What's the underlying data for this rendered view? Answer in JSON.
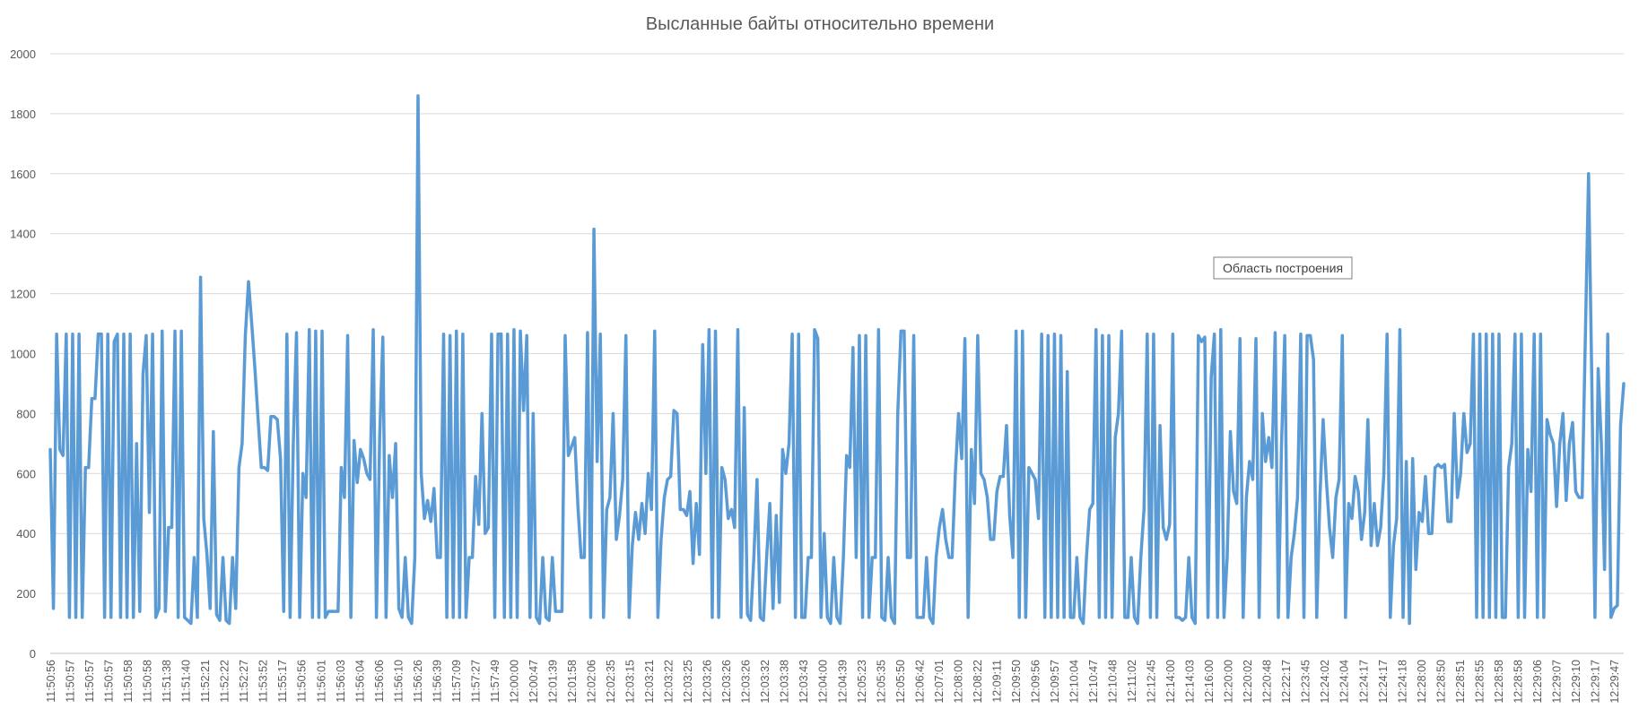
{
  "chart_data": {
    "type": "line",
    "title": "Высланные байты относительно времени",
    "xlabel": "",
    "ylabel": "",
    "ylim": [
      0,
      2000
    ],
    "yticks": [
      0,
      200,
      400,
      600,
      800,
      1000,
      1200,
      1400,
      1600,
      1800,
      2000
    ],
    "grid": true,
    "legend": "none",
    "line_color": "#5B9BD5",
    "tooltip": "Область построения",
    "xtick_labels": [
      "11:50:56",
      "11:50:57",
      "11:50:57",
      "11:50:57",
      "11:50:58",
      "11:50:58",
      "11:51:38",
      "11:51:40",
      "11:52:21",
      "11:52:22",
      "11:52:27",
      "11:53:52",
      "11:55:17",
      "11:50:56",
      "11:56:01",
      "11:56:03",
      "11:56:04",
      "11:56:06",
      "11:56:10",
      "11:56:26",
      "11:56:39",
      "11:57:09",
      "11:57:27",
      "11:57:49",
      "12:00:00",
      "12:00:47",
      "12:01:39",
      "12:01:58",
      "12:02:06",
      "12:02:35",
      "12:03:15",
      "12:03:21",
      "12:03:22",
      "12:03:25",
      "12:03:26",
      "12:03:26",
      "12:03:26",
      "12:03:32",
      "12:03:38",
      "12:03:43",
      "12:04:00",
      "12:04:39",
      "12:05:23",
      "12:05:35",
      "12:05:50",
      "12:06:42",
      "12:07:01",
      "12:08:00",
      "12:08:22",
      "12:09:11",
      "12:09:50",
      "12:09:56",
      "12:09:57",
      "12:10:04",
      "12:10:47",
      "12:10:48",
      "12:11:02",
      "12:12:45",
      "12:14:00",
      "12:14:03",
      "12:16:00",
      "12:20:00",
      "12:20:02",
      "12:20:48",
      "12:22:17",
      "12:23:45",
      "12:24:02",
      "12:24:04",
      "12:24:17",
      "12:24:17",
      "12:24:18",
      "12:28:00",
      "12:28:50",
      "12:28:51",
      "12:28:55",
      "12:28:58",
      "12:28:58",
      "12:29:06",
      "12:29:07",
      "12:29:10",
      "12:29:17",
      "12:29:47"
    ],
    "series": [
      {
        "values": [
          680,
          150,
          1065,
          680,
          660,
          1065,
          120,
          1065,
          120,
          1065,
          120,
          620,
          620,
          850,
          850,
          1065,
          1065,
          120,
          1065,
          120,
          1040,
          1065,
          120,
          1065,
          120,
          1065,
          120,
          700,
          140,
          930,
          1060,
          470,
          1065,
          120,
          150,
          1075,
          140,
          420,
          420,
          1075,
          120,
          1075,
          120,
          110,
          100,
          320,
          120,
          1255,
          450,
          330,
          150,
          740,
          130,
          110,
          320,
          110,
          100,
          320,
          150,
          620,
          700,
          1060,
          1240,
          1100,
          950,
          780,
          620,
          620,
          610,
          790,
          790,
          780,
          650,
          140,
          1065,
          120,
          700,
          1070,
          120,
          600,
          520,
          1080,
          120,
          1075,
          120,
          1075,
          120,
          140,
          140,
          140,
          140,
          620,
          520,
          1060,
          120,
          710,
          570,
          680,
          650,
          600,
          580,
          1080,
          120,
          720,
          1055,
          120,
          660,
          520,
          700,
          150,
          120,
          320,
          120,
          100,
          320,
          1860,
          600,
          450,
          510,
          440,
          550,
          320,
          320,
          1065,
          120,
          1060,
          120,
          1075,
          120,
          1065,
          120,
          320,
          320,
          590,
          430,
          800,
          400,
          420,
          1065,
          120,
          1065,
          1065,
          120,
          1065,
          120,
          1080,
          120,
          1075,
          810,
          1060,
          120,
          800,
          120,
          100,
          320,
          120,
          110,
          320,
          140,
          140,
          140,
          1060,
          660,
          690,
          720,
          490,
          320,
          320,
          1070,
          120,
          1415,
          640,
          1065,
          120,
          480,
          520,
          800,
          380,
          460,
          580,
          1060,
          120,
          360,
          470,
          380,
          500,
          400,
          600,
          480,
          1075,
          120,
          380,
          520,
          580,
          590,
          810,
          800,
          480,
          480,
          460,
          540,
          300,
          500,
          330,
          1030,
          600,
          1080,
          120,
          1075,
          120,
          620,
          580,
          450,
          480,
          420,
          1080,
          120,
          820,
          130,
          110,
          320,
          580,
          120,
          110,
          320,
          500,
          150,
          460,
          170,
          680,
          600,
          700,
          1065,
          120,
          1065,
          120,
          120,
          320,
          320,
          1080,
          1050,
          120,
          400,
          120,
          100,
          320,
          120,
          100,
          320,
          660,
          620,
          1020,
          320,
          1060,
          120,
          1060,
          120,
          320,
          320,
          1080,
          120,
          110,
          320,
          120,
          100,
          800,
          1075,
          1075,
          320,
          320,
          1060,
          120,
          120,
          120,
          320,
          120,
          100,
          320,
          420,
          480,
          380,
          320,
          320,
          600,
          800,
          650,
          1050,
          120,
          680,
          500,
          1060,
          600,
          580,
          520,
          380,
          380,
          540,
          590,
          590,
          760,
          460,
          320,
          1075,
          120,
          1075,
          120,
          620,
          600,
          580,
          450,
          1065,
          120,
          1060,
          120,
          1065,
          120,
          1060,
          120,
          940,
          120,
          120,
          320,
          120,
          100,
          320,
          480,
          500,
          1080,
          120,
          1060,
          120,
          1060,
          120,
          720,
          800,
          1075,
          120,
          120,
          320,
          120,
          100,
          320,
          480,
          1065,
          120,
          1065,
          120,
          760,
          420,
          380,
          430,
          1065,
          120,
          120,
          110,
          120,
          320,
          120,
          100,
          1060,
          1040,
          1055,
          120,
          920,
          1065,
          120,
          1080,
          120,
          320,
          740,
          540,
          500,
          1050,
          120,
          520,
          640,
          580,
          1050,
          120,
          800,
          640,
          720,
          620,
          1070,
          120,
          700,
          1060,
          120,
          320,
          400,
          520,
          1065,
          120,
          1060,
          1060,
          980,
          120,
          520,
          780,
          580,
          420,
          320,
          520,
          580,
          1060,
          120,
          500,
          450,
          590,
          540,
          380,
          470,
          780,
          360,
          500,
          360,
          420,
          600,
          1065,
          120,
          360,
          450,
          1080,
          120,
          640,
          100,
          650,
          280,
          470,
          440,
          590,
          400,
          400,
          620,
          630,
          620,
          630,
          440,
          440,
          800,
          520,
          600,
          800,
          670,
          700,
          1065,
          120,
          1065,
          120,
          1065,
          120,
          1065,
          120,
          1065,
          120,
          120,
          620,
          700,
          1065,
          120,
          1065,
          120,
          680,
          540,
          1065,
          120,
          1065,
          120,
          780,
          730,
          700,
          490,
          700,
          800,
          510,
          700,
          770,
          540,
          520,
          520,
          1060,
          1600,
          920,
          120,
          950,
          700,
          280,
          1065,
          120,
          150,
          160,
          760,
          900
        ]
      }
    ]
  }
}
